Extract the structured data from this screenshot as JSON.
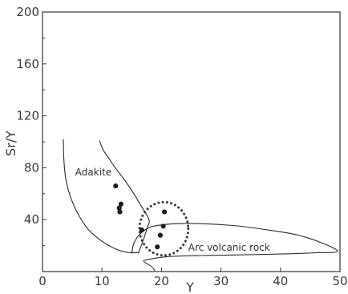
{
  "chart_data": {
    "type": "scatter",
    "xlabel": "Y",
    "ylabel": "Sr/Y",
    "xlim": [
      0,
      50
    ],
    "ylim": [
      0,
      200
    ],
    "xticks": [
      0,
      10,
      20,
      30,
      40,
      50
    ],
    "yticks": [
      40,
      80,
      120,
      160,
      200
    ],
    "grid": false,
    "points": [
      {
        "x": 12.3,
        "y": 66
      },
      {
        "x": 13.2,
        "y": 52
      },
      {
        "x": 12.9,
        "y": 49
      },
      {
        "x": 13.0,
        "y": 46
      },
      {
        "x": 16.7,
        "y": 32
      },
      {
        "x": 20.5,
        "y": 46
      },
      {
        "x": 20.3,
        "y": 35
      },
      {
        "x": 19.8,
        "y": 28
      },
      {
        "x": 19.3,
        "y": 19
      }
    ],
    "fields": [
      {
        "label": "Adakite",
        "label_at": {
          "x": 5.5,
          "y": 74
        },
        "boundary": [
          [
            3.5,
            102
          ],
          [
            3.6,
            86
          ],
          [
            3.9,
            72
          ],
          [
            4.6,
            59
          ],
          [
            5.8,
            46
          ],
          [
            7.6,
            33
          ],
          [
            9.8,
            24
          ],
          [
            12.0,
            18
          ],
          [
            14.0,
            15
          ],
          [
            16.0,
            14.5
          ],
          [
            16.2,
            15.5
          ],
          [
            17.0,
            25
          ],
          [
            17.6,
            34
          ],
          [
            17.9,
            40
          ],
          [
            16.4,
            52
          ],
          [
            14.8,
            64
          ],
          [
            13.4,
            73
          ],
          [
            11.9,
            82
          ],
          [
            11.2,
            87
          ],
          [
            10.3,
            93
          ],
          [
            9.8,
            98
          ],
          [
            9.6,
            101
          ]
        ]
      },
      {
        "label": "Arc volcanic rock",
        "label_at": {
          "x": 24.5,
          "y": 16
        },
        "boundary": [
          [
            15.0,
            14.0
          ],
          [
            15.3,
            21
          ],
          [
            16.2,
            28
          ],
          [
            18.0,
            34
          ],
          [
            21.0,
            36.5
          ],
          [
            26.0,
            37
          ],
          [
            32.0,
            35.5
          ],
          [
            38.0,
            32
          ],
          [
            43.0,
            28
          ],
          [
            47.0,
            22
          ],
          [
            49.6,
            15.5
          ],
          [
            46.0,
            14.5
          ],
          [
            40.0,
            13.5
          ],
          [
            32.0,
            12.8
          ],
          [
            26.0,
            12.3
          ],
          [
            21.0,
            11.5
          ],
          [
            18.0,
            9.5
          ],
          [
            17.0,
            8.0
          ],
          [
            18.3,
            4.0
          ],
          [
            18.9,
            0.5
          ]
        ]
      }
    ],
    "highlight_ellipse": {
      "cx": 20.4,
      "cy": 33,
      "rx": 4.1,
      "ry": 20.5,
      "style": "dotted"
    }
  }
}
